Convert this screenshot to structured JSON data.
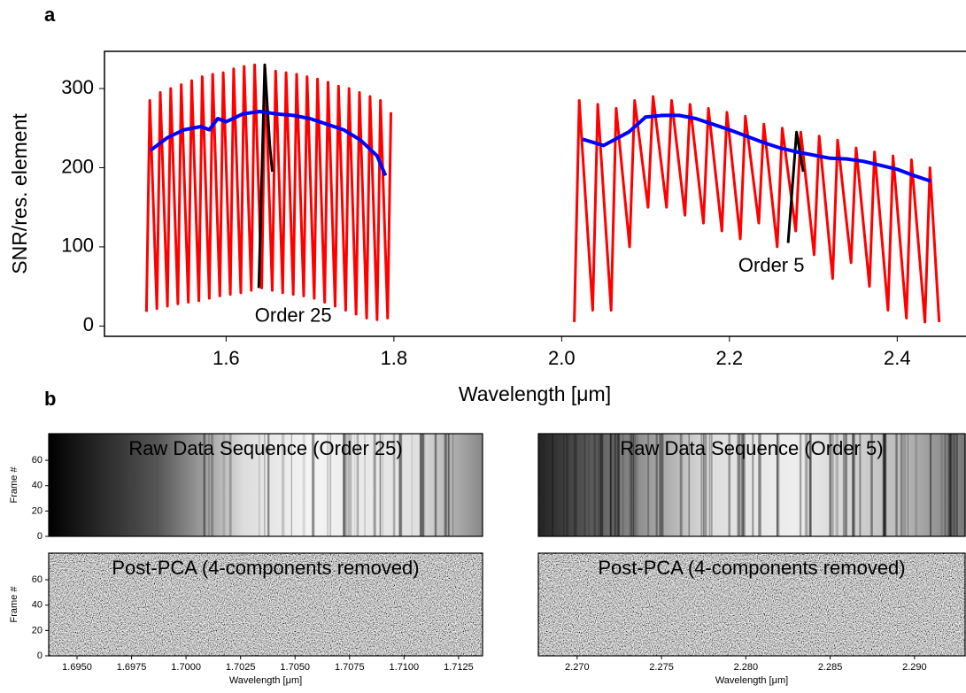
{
  "panel_labels": [
    "a",
    "b"
  ],
  "chart_data": [
    {
      "type": "line",
      "xlabel": "Wavelength [μm]",
      "ylabel": "SNR/res. element",
      "xlim": [
        1.455,
        2.482
      ],
      "ylim": [
        -13,
        347
      ],
      "xticks": [
        1.6,
        1.8,
        {
          "value": 2,
          "label": "2.0"
        },
        2.2,
        2.4
      ],
      "yticks": [
        0,
        100,
        200,
        300
      ],
      "annotations": [
        {
          "text": "Order 25",
          "x": 1.68,
          "y": 12
        },
        {
          "text": "Order 5",
          "x": 2.25,
          "y": 75
        }
      ],
      "series": [
        {
          "color": "#ff0000",
          "x": [
            1.505,
            1.509,
            1.5175,
            1.5215,
            1.53,
            1.534,
            1.5425,
            1.5465,
            1.555,
            1.559,
            1.5675,
            1.5715,
            1.58,
            1.584,
            1.5925,
            1.5965,
            1.605,
            1.609,
            1.6175,
            1.6215,
            1.63,
            1.634,
            1.6425,
            1.6465,
            1.655,
            1.659,
            1.6675,
            1.6715,
            1.68,
            1.684,
            1.6925,
            1.6965,
            1.705,
            1.709,
            1.7175,
            1.7215,
            1.73,
            1.734,
            1.7425,
            1.7465,
            1.755,
            1.759,
            1.7675,
            1.7715,
            1.78,
            1.784,
            1.7925,
            1.7965,
            1.9,
            2.015,
            2.021,
            2.037,
            2.043,
            2.059,
            2.065,
            2.081,
            2.087,
            2.103,
            2.109,
            2.125,
            2.131,
            2.147,
            2.153,
            2.169,
            2.175,
            2.191,
            2.197,
            2.213,
            2.219,
            2.235,
            2.241,
            2.257,
            2.263,
            2.279,
            2.285,
            2.301,
            2.307,
            2.323,
            2.329,
            2.345,
            2.351,
            2.367,
            2.373,
            2.389,
            2.395,
            2.411,
            2.417,
            2.433,
            2.439,
            2.45
          ],
          "values": [
            18,
            285,
            22,
            295,
            25,
            300,
            28,
            305,
            30,
            310,
            32,
            315,
            35,
            318,
            38,
            320,
            40,
            325,
            42,
            328,
            45,
            330,
            48,
            325,
            45,
            322,
            42,
            320,
            40,
            318,
            38,
            315,
            35,
            312,
            30,
            308,
            25,
            303,
            20,
            300,
            15,
            295,
            10,
            290,
            8,
            285,
            10,
            270,
            null,
            5,
            285,
            20,
            280,
            20,
            275,
            100,
            285,
            150,
            290,
            150,
            285,
            140,
            280,
            130,
            275,
            120,
            270,
            110,
            265,
            130,
            255,
            100,
            250,
            120,
            245,
            90,
            240,
            60,
            235,
            80,
            225,
            50,
            220,
            20,
            215,
            10,
            210,
            5,
            200,
            5
          ]
        },
        {
          "color": "#000000",
          "x": [
            1.639,
            1.646,
            1.652,
            1.655,
            2.0,
            2.27,
            2.28,
            2.288
          ],
          "values": [
            48,
            330,
            230,
            195,
            null,
            105,
            245,
            195
          ]
        },
        {
          "color": "#0000ff",
          "x": [
            1.51,
            1.53,
            1.55,
            1.57,
            1.58,
            1.59,
            1.6,
            1.62,
            1.64,
            1.66,
            1.68,
            1.7,
            1.72,
            1.74,
            1.76,
            1.78,
            1.79,
            1.9,
            2.025,
            2.05,
            2.08,
            2.1,
            2.12,
            2.14,
            2.16,
            2.18,
            2.2,
            2.22,
            2.24,
            2.26,
            2.28,
            2.3,
            2.32,
            2.34,
            2.36,
            2.38,
            2.4,
            2.42,
            2.44
          ],
          "values": [
            222,
            238,
            248,
            252,
            248,
            262,
            258,
            268,
            271,
            268,
            266,
            262,
            255,
            248,
            235,
            215,
            190,
            null,
            236,
            228,
            245,
            264,
            266,
            266,
            262,
            255,
            248,
            240,
            232,
            225,
            220,
            216,
            212,
            211,
            208,
            203,
            198,
            190,
            183
          ]
        }
      ]
    },
    {
      "type": "image",
      "style": "raw-25",
      "title": "Raw Data Sequence (Order 25)",
      "ylabel": "Frame #",
      "ylim": [
        0,
        81
      ],
      "yticks": [
        0,
        20,
        40,
        60
      ]
    },
    {
      "type": "image",
      "style": "pca",
      "title": "Post-PCA (4-components removed)",
      "ylabel": "Frame #",
      "xlabel": "Wavelength [μm]",
      "ylim": [
        0,
        81
      ],
      "yticks": [
        0,
        20,
        40,
        60
      ],
      "xlim": [
        1.6937,
        1.7136
      ],
      "xticks": [
        {
          "value": 1.695,
          "label": "1.6950"
        },
        {
          "value": 1.6975,
          "label": "1.6975"
        },
        {
          "value": 1.7,
          "label": "1.7000"
        },
        {
          "value": 1.7025,
          "label": "1.7025"
        },
        {
          "value": 1.705,
          "label": "1.7050"
        },
        {
          "value": 1.7075,
          "label": "1.7075"
        },
        {
          "value": 1.71,
          "label": "1.7100"
        },
        {
          "value": 1.7125,
          "label": "1.7125"
        }
      ]
    },
    {
      "type": "image",
      "style": "raw-5",
      "title": "Raw Data Sequence (Order 5)"
    },
    {
      "type": "image",
      "style": "pca",
      "title": "Post-PCA (4-components removed)",
      "xlabel": "Wavelength [μm]",
      "xlim": [
        2.2677,
        2.293
      ],
      "xticks": [
        {
          "value": 2.27,
          "label": "2.270"
        },
        {
          "value": 2.275,
          "label": "2.275"
        },
        {
          "value": 2.28,
          "label": "2.280"
        },
        {
          "value": 2.285,
          "label": "2.285"
        },
        {
          "value": 2.29,
          "label": "2.290"
        }
      ]
    }
  ]
}
